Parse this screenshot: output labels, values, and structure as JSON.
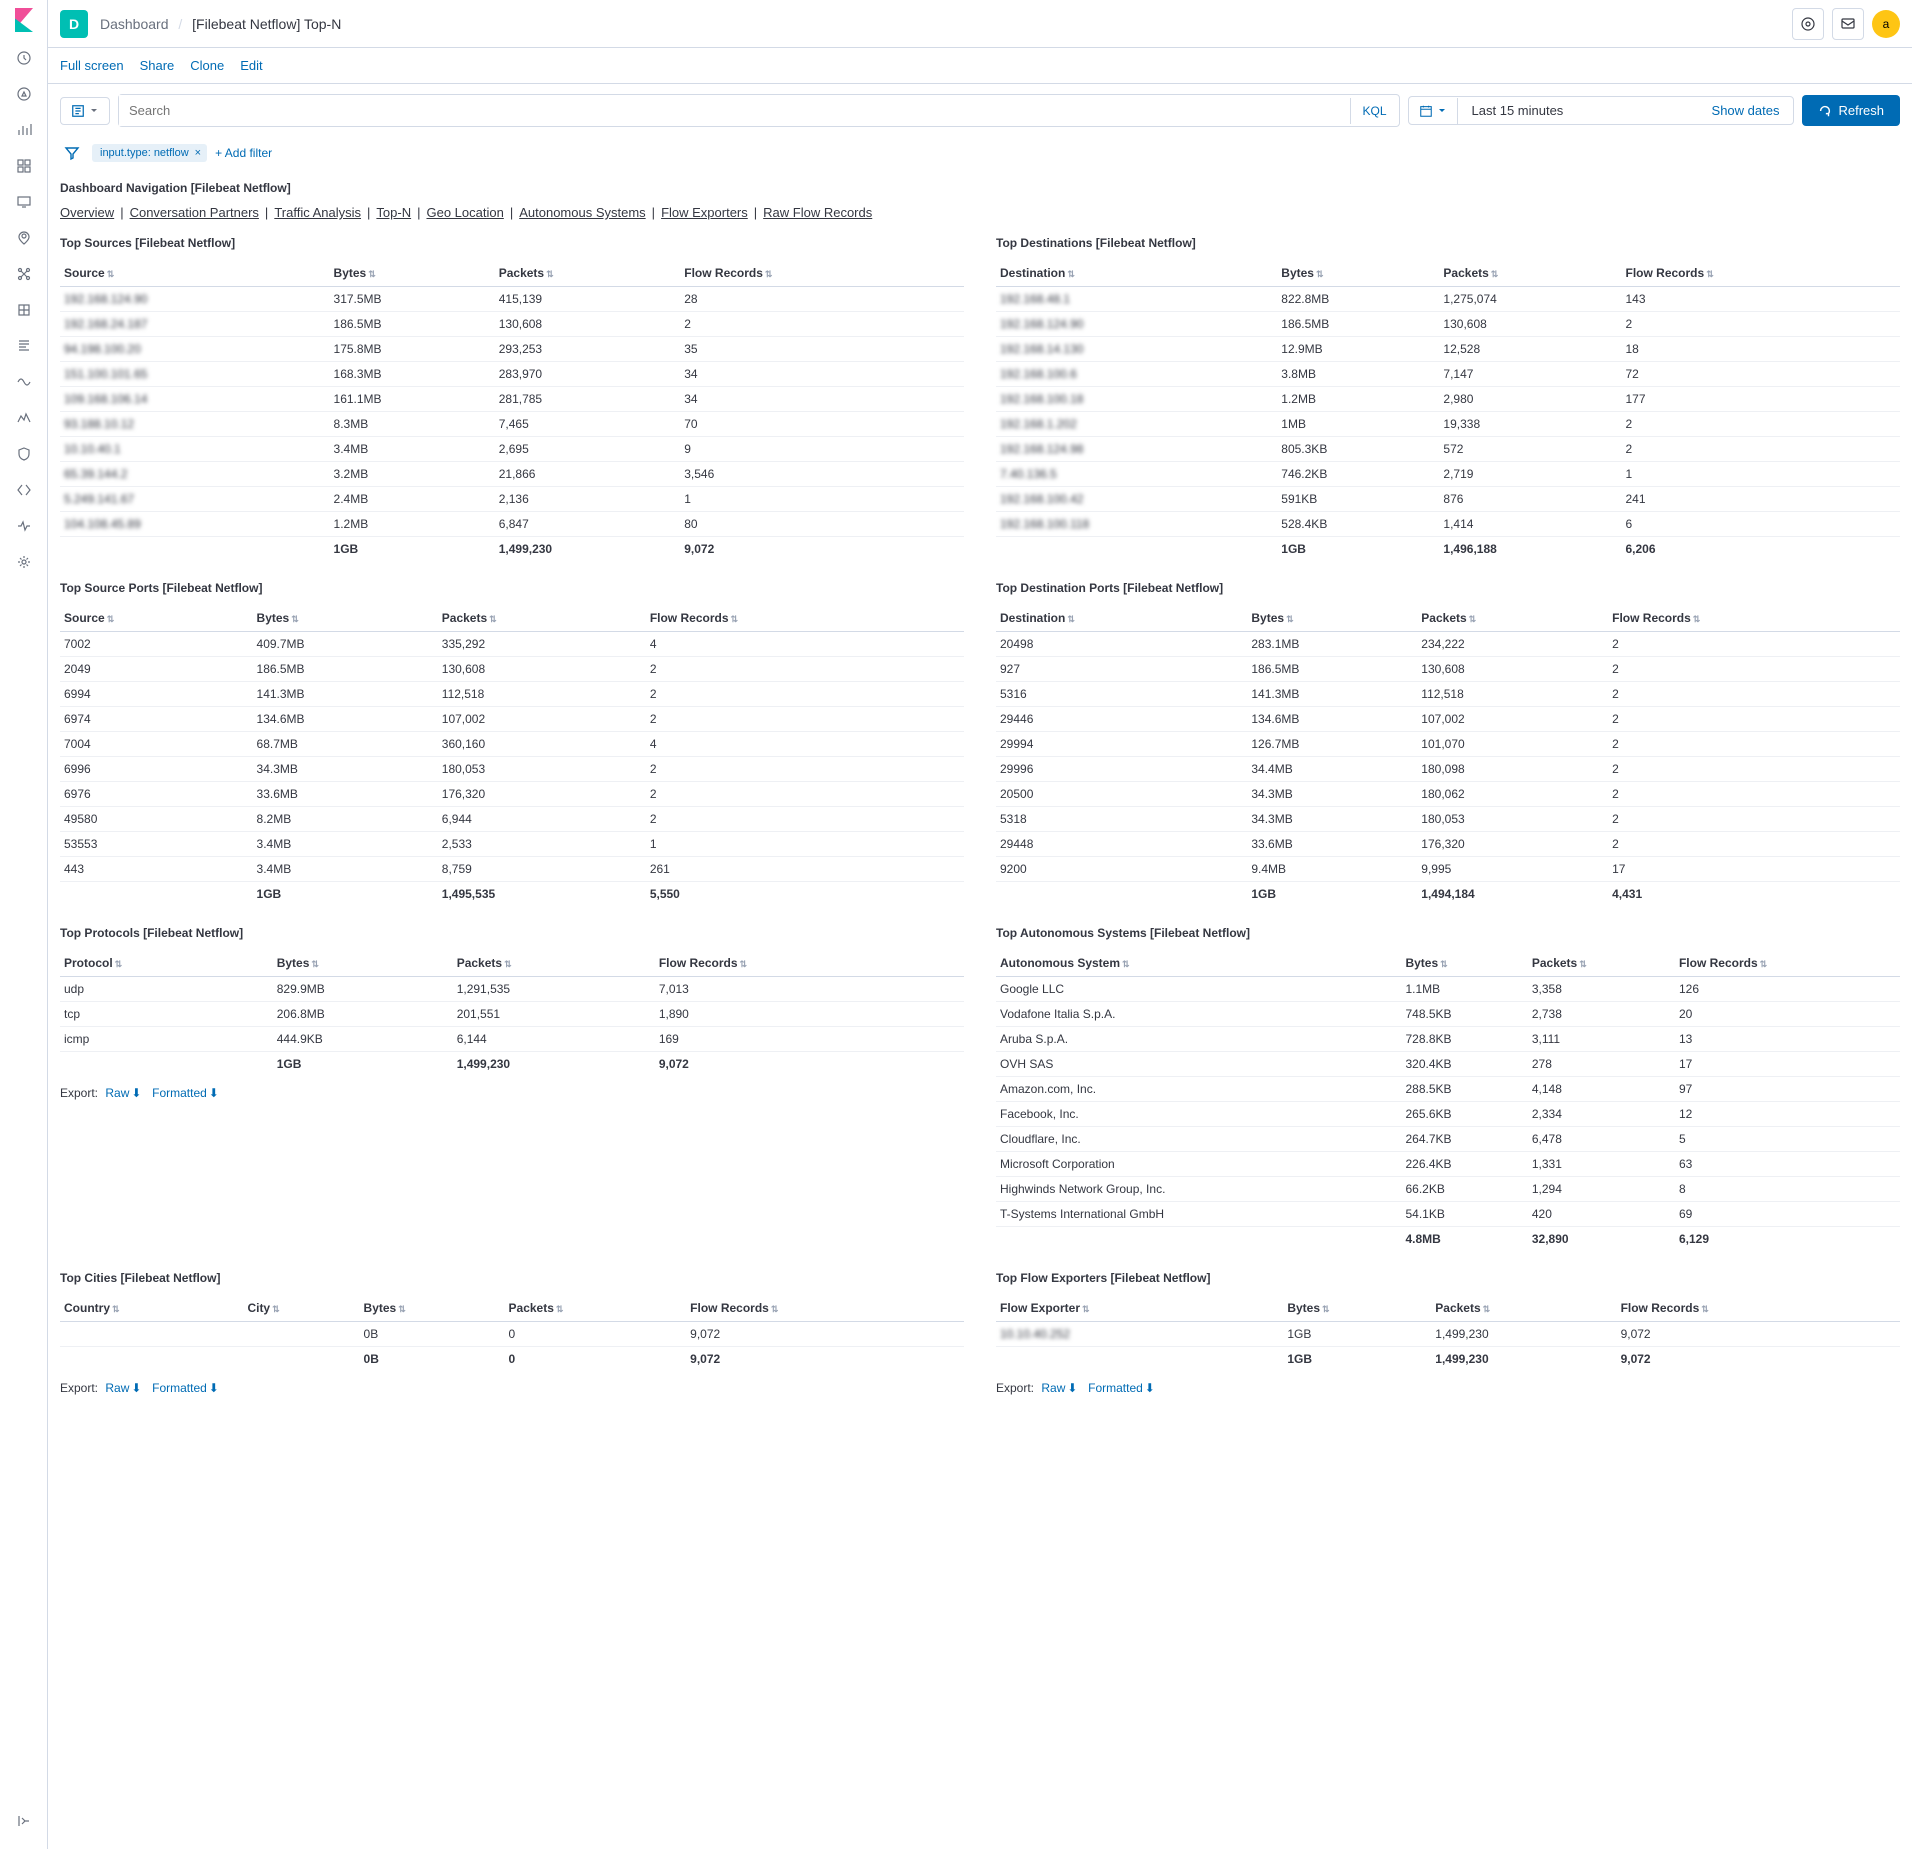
{
  "topbar": {
    "badge": "D",
    "breadcrumb_dashboard": "Dashboard",
    "breadcrumb_current": "[Filebeat Netflow] Top-N",
    "avatar": "a"
  },
  "toolbar": {
    "full_screen": "Full screen",
    "share": "Share",
    "clone": "Clone",
    "edit": "Edit"
  },
  "query": {
    "search_placeholder": "Search",
    "kql": "KQL",
    "date_range": "Last 15 minutes",
    "show_dates": "Show dates",
    "refresh": "Refresh"
  },
  "filters": {
    "pill": "input.type: netflow",
    "add_filter": "+ Add filter"
  },
  "nav": {
    "title": "Dashboard Navigation [Filebeat Netflow]",
    "links": [
      "Overview",
      "Conversation Partners",
      "Traffic Analysis",
      "Top-N",
      "Geo Location",
      "Autonomous Systems",
      "Flow Exporters",
      "Raw Flow Records"
    ]
  },
  "colors": {
    "primary": "#006bb4",
    "accent": "#00bfb3",
    "border": "#d3dae6",
    "text": "#343741",
    "muted": "#69707d"
  },
  "panels": {
    "top_sources": {
      "title": "Top Sources [Filebeat Netflow]",
      "cols": [
        "Source",
        "Bytes",
        "Packets",
        "Flow Records"
      ],
      "rows": [
        [
          "192.168.124.90",
          "317.5MB",
          "415,139",
          "28"
        ],
        [
          "192.168.24.187",
          "186.5MB",
          "130,608",
          "2"
        ],
        [
          "94.198.100.20",
          "175.8MB",
          "293,253",
          "35"
        ],
        [
          "151.100.101.65",
          "168.3MB",
          "283,970",
          "34"
        ],
        [
          "109.168.106.14",
          "161.1MB",
          "281,785",
          "34"
        ],
        [
          "93.188.10.12",
          "8.3MB",
          "7,465",
          "70"
        ],
        [
          "10.10.40.1",
          "3.4MB",
          "2,695",
          "9"
        ],
        [
          "65.39.144.2",
          "3.2MB",
          "21,866",
          "3,546"
        ],
        [
          "5.249.141.67",
          "2.4MB",
          "2,136",
          "1"
        ],
        [
          "104.108.45.89",
          "1.2MB",
          "6,847",
          "80"
        ]
      ],
      "total": [
        "",
        "1GB",
        "1,499,230",
        "9,072"
      ]
    },
    "top_destinations": {
      "title": "Top Destinations [Filebeat Netflow]",
      "cols": [
        "Destination",
        "Bytes",
        "Packets",
        "Flow Records"
      ],
      "rows": [
        [
          "192.168.48.1",
          "822.8MB",
          "1,275,074",
          "143"
        ],
        [
          "192.168.124.90",
          "186.5MB",
          "130,608",
          "2"
        ],
        [
          "192.168.14.130",
          "12.9MB",
          "12,528",
          "18"
        ],
        [
          "192.168.100.6",
          "3.8MB",
          "7,147",
          "72"
        ],
        [
          "192.168.100.18",
          "1.2MB",
          "2,980",
          "177"
        ],
        [
          "192.168.1.202",
          "1MB",
          "19,338",
          "2"
        ],
        [
          "192.168.124.98",
          "805.3KB",
          "572",
          "2"
        ],
        [
          "7.40.136.5",
          "746.2KB",
          "2,719",
          "1"
        ],
        [
          "192.168.100.42",
          "591KB",
          "876",
          "241"
        ],
        [
          "192.168.100.118",
          "528.4KB",
          "1,414",
          "6"
        ]
      ],
      "total": [
        "",
        "1GB",
        "1,496,188",
        "6,206"
      ]
    },
    "top_src_ports": {
      "title": "Top Source Ports [Filebeat Netflow]",
      "cols": [
        "Source",
        "Bytes",
        "Packets",
        "Flow Records"
      ],
      "rows": [
        [
          "7002",
          "409.7MB",
          "335,292",
          "4"
        ],
        [
          "2049",
          "186.5MB",
          "130,608",
          "2"
        ],
        [
          "6994",
          "141.3MB",
          "112,518",
          "2"
        ],
        [
          "6974",
          "134.6MB",
          "107,002",
          "2"
        ],
        [
          "7004",
          "68.7MB",
          "360,160",
          "4"
        ],
        [
          "6996",
          "34.3MB",
          "180,053",
          "2"
        ],
        [
          "6976",
          "33.6MB",
          "176,320",
          "2"
        ],
        [
          "49580",
          "8.2MB",
          "6,944",
          "2"
        ],
        [
          "53553",
          "3.4MB",
          "2,533",
          "1"
        ],
        [
          "443",
          "3.4MB",
          "8,759",
          "261"
        ]
      ],
      "total": [
        "",
        "1GB",
        "1,495,535",
        "5,550"
      ]
    },
    "top_dst_ports": {
      "title": "Top Destination Ports [Filebeat Netflow]",
      "cols": [
        "Destination",
        "Bytes",
        "Packets",
        "Flow Records"
      ],
      "rows": [
        [
          "20498",
          "283.1MB",
          "234,222",
          "2"
        ],
        [
          "927",
          "186.5MB",
          "130,608",
          "2"
        ],
        [
          "5316",
          "141.3MB",
          "112,518",
          "2"
        ],
        [
          "29446",
          "134.6MB",
          "107,002",
          "2"
        ],
        [
          "29994",
          "126.7MB",
          "101,070",
          "2"
        ],
        [
          "29996",
          "34.4MB",
          "180,098",
          "2"
        ],
        [
          "20500",
          "34.3MB",
          "180,062",
          "2"
        ],
        [
          "5318",
          "34.3MB",
          "180,053",
          "2"
        ],
        [
          "29448",
          "33.6MB",
          "176,320",
          "2"
        ],
        [
          "9200",
          "9.4MB",
          "9,995",
          "17"
        ]
      ],
      "total": [
        "",
        "1GB",
        "1,494,184",
        "4,431"
      ]
    },
    "top_protocols": {
      "title": "Top Protocols [Filebeat Netflow]",
      "cols": [
        "Protocol",
        "Bytes",
        "Packets",
        "Flow Records"
      ],
      "rows": [
        [
          "udp",
          "829.9MB",
          "1,291,535",
          "7,013"
        ],
        [
          "tcp",
          "206.8MB",
          "201,551",
          "1,890"
        ],
        [
          "icmp",
          "444.9KB",
          "6,144",
          "169"
        ]
      ],
      "total": [
        "",
        "1GB",
        "1,499,230",
        "9,072"
      ]
    },
    "top_as": {
      "title": "Top Autonomous Systems [Filebeat Netflow]",
      "cols": [
        "Autonomous System",
        "Bytes",
        "Packets",
        "Flow Records"
      ],
      "rows": [
        [
          "Google LLC",
          "1.1MB",
          "3,358",
          "126"
        ],
        [
          "Vodafone Italia S.p.A.",
          "748.5KB",
          "2,738",
          "20"
        ],
        [
          "Aruba S.p.A.",
          "728.8KB",
          "3,111",
          "13"
        ],
        [
          "OVH SAS",
          "320.4KB",
          "278",
          "17"
        ],
        [
          "Amazon.com, Inc.",
          "288.5KB",
          "4,148",
          "97"
        ],
        [
          "Facebook, Inc.",
          "265.6KB",
          "2,334",
          "12"
        ],
        [
          "Cloudflare, Inc.",
          "264.7KB",
          "6,478",
          "5"
        ],
        [
          "Microsoft Corporation",
          "226.4KB",
          "1,331",
          "63"
        ],
        [
          "Highwinds Network Group, Inc.",
          "66.2KB",
          "1,294",
          "8"
        ],
        [
          "T-Systems International GmbH",
          "54.1KB",
          "420",
          "69"
        ]
      ],
      "total": [
        "",
        "4.8MB",
        "32,890",
        "6,129"
      ]
    },
    "top_cities": {
      "title": "Top Cities [Filebeat Netflow]",
      "cols": [
        "Country",
        "City",
        "Bytes",
        "Packets",
        "Flow Records"
      ],
      "rows": [
        [
          "",
          "",
          "0B",
          "0",
          "9,072"
        ]
      ],
      "total": [
        "",
        "",
        "0B",
        "0",
        "9,072"
      ]
    },
    "top_exporters": {
      "title": "Top Flow Exporters [Filebeat Netflow]",
      "cols": [
        "Flow Exporter",
        "Bytes",
        "Packets",
        "Flow Records"
      ],
      "rows": [
        [
          "10.10.40.252",
          "1GB",
          "1,499,230",
          "9,072"
        ]
      ],
      "total": [
        "",
        "1GB",
        "1,499,230",
        "9,072"
      ]
    }
  },
  "export": {
    "label": "Export:",
    "raw": "Raw",
    "formatted": "Formatted"
  }
}
